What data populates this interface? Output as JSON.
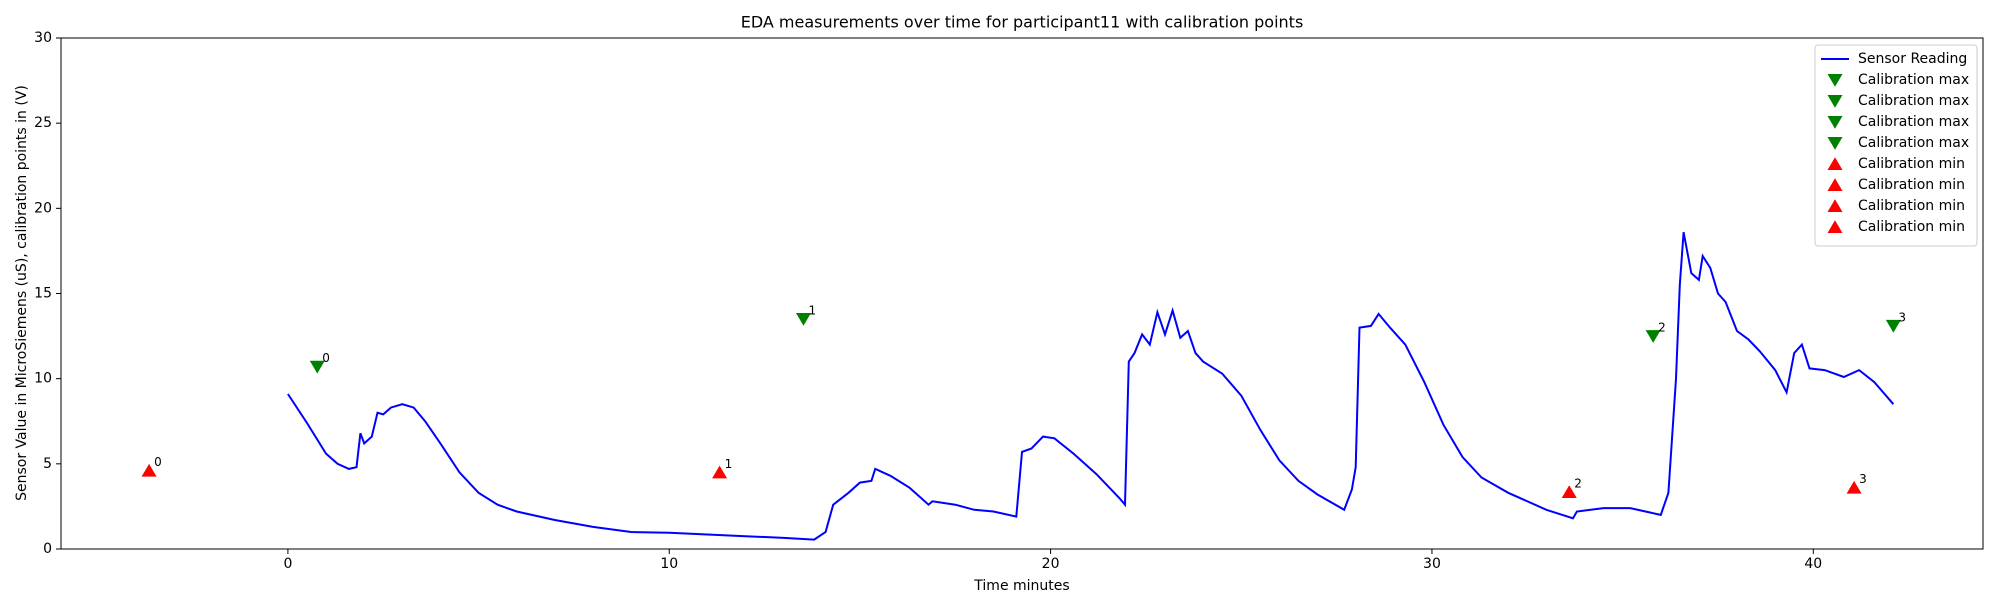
{
  "chart_data": {
    "type": "line",
    "title": "EDA measurements over time for participant11 with calibration points",
    "xlabel": "Time minutes",
    "ylabel": "Sensor Value in MicroSiemens (uS), calibration points in (V)",
    "xlim": [
      -5.95,
      44.45
    ],
    "xticks": [
      0,
      10,
      20,
      30,
      40
    ],
    "ylim": [
      0,
      30
    ],
    "yticks": [
      0,
      5,
      10,
      15,
      20,
      25,
      30
    ],
    "legend": "upper right",
    "series": [
      {
        "name": "Sensor Reading",
        "type": "line",
        "color": "#0000ff",
        "x": [
          0,
          0.5,
          1.0,
          1.3,
          1.6,
          1.8,
          1.9,
          2.0,
          2.2,
          2.35,
          2.5,
          2.7,
          3.0,
          3.3,
          3.6,
          4.0,
          4.5,
          5.0,
          5.5,
          6.0,
          7.0,
          8.0,
          9.0,
          10.0,
          11.0,
          12.0,
          13.0,
          13.8,
          14.1,
          14.3,
          14.7,
          15.0,
          15.3,
          15.4,
          15.8,
          16.3,
          16.8,
          16.9,
          17.5,
          18.0,
          18.5,
          19.1,
          19.25,
          19.5,
          19.8,
          20.1,
          20.6,
          21.2,
          21.8,
          21.95,
          22.05,
          22.2,
          22.4,
          22.6,
          22.8,
          23.0,
          23.2,
          23.4,
          23.6,
          23.8,
          24.0,
          24.5,
          25.0,
          25.5,
          26.0,
          26.5,
          27.0,
          27.7,
          27.9,
          28.0,
          28.1,
          28.4,
          28.6,
          28.9,
          29.3,
          29.8,
          30.3,
          30.8,
          31.3,
          32.0,
          33.0,
          33.7,
          33.8,
          34.5,
          35.2,
          36.0,
          36.2,
          36.4,
          36.5,
          36.6,
          36.8,
          37.0,
          37.1,
          37.3,
          37.5,
          37.7,
          38.0,
          38.3,
          38.6,
          39.0,
          39.3,
          39.5,
          39.7,
          39.9,
          40.3,
          40.8,
          41.2,
          41.6,
          42.1
        ],
        "values": [
          9.1,
          7.4,
          5.6,
          5.0,
          4.7,
          4.8,
          6.8,
          6.2,
          6.6,
          8.0,
          7.9,
          8.3,
          8.5,
          8.3,
          7.5,
          6.2,
          4.5,
          3.3,
          2.6,
          2.2,
          1.7,
          1.3,
          1.0,
          0.95,
          0.85,
          0.75,
          0.65,
          0.55,
          1.0,
          2.6,
          3.3,
          3.9,
          4.0,
          4.7,
          4.3,
          3.6,
          2.6,
          2.8,
          2.6,
          2.3,
          2.2,
          1.9,
          5.7,
          5.9,
          6.6,
          6.5,
          5.6,
          4.4,
          3.0,
          2.6,
          11.0,
          11.5,
          12.6,
          12.0,
          13.9,
          12.6,
          14.0,
          12.4,
          12.8,
          11.5,
          11.0,
          10.3,
          9.0,
          7.0,
          5.2,
          4.0,
          3.2,
          2.3,
          3.5,
          4.8,
          13.0,
          13.1,
          13.8,
          13.0,
          12.0,
          9.8,
          7.3,
          5.4,
          4.2,
          3.3,
          2.3,
          1.8,
          2.2,
          2.4,
          2.4,
          2.0,
          3.3,
          10.0,
          15.5,
          18.6,
          16.2,
          15.8,
          17.2,
          16.5,
          15.0,
          14.5,
          12.8,
          12.3,
          11.6,
          10.5,
          9.2,
          11.5,
          12.0,
          10.6,
          10.5,
          10.1,
          10.5,
          9.8,
          8.5
        ]
      },
      {
        "name": "Calibration max",
        "type": "scatter",
        "marker": "v",
        "color": "#008000",
        "x": [
          0.77
        ],
        "values": [
          10.7
        ],
        "point_labels": [
          "0"
        ]
      },
      {
        "name": "Calibration max",
        "type": "scatter",
        "marker": "v",
        "color": "#008000",
        "x": [
          13.52
        ],
        "values": [
          13.5
        ],
        "point_labels": [
          "1"
        ]
      },
      {
        "name": "Calibration max",
        "type": "scatter",
        "marker": "v",
        "color": "#008000",
        "x": [
          35.8
        ],
        "values": [
          12.5
        ],
        "point_labels": [
          "2"
        ]
      },
      {
        "name": "Calibration max",
        "type": "scatter",
        "marker": "v",
        "color": "#008000",
        "x": [
          42.1
        ],
        "values": [
          13.1
        ],
        "point_labels": [
          "3"
        ]
      },
      {
        "name": "Calibration min",
        "type": "scatter",
        "marker": "^",
        "color": "#ff0000",
        "x": [
          -3.64
        ],
        "values": [
          4.6
        ],
        "point_labels": [
          "0"
        ]
      },
      {
        "name": "Calibration min",
        "type": "scatter",
        "marker": "^",
        "color": "#ff0000",
        "x": [
          11.32
        ],
        "values": [
          4.5
        ],
        "point_labels": [
          "1"
        ]
      },
      {
        "name": "Calibration min",
        "type": "scatter",
        "marker": "^",
        "color": "#ff0000",
        "x": [
          33.6
        ],
        "values": [
          3.35
        ],
        "point_labels": [
          "2"
        ]
      },
      {
        "name": "Calibration min",
        "type": "scatter",
        "marker": "^",
        "color": "#ff0000",
        "x": [
          41.07
        ],
        "values": [
          3.6
        ],
        "point_labels": [
          "3"
        ]
      }
    ]
  }
}
